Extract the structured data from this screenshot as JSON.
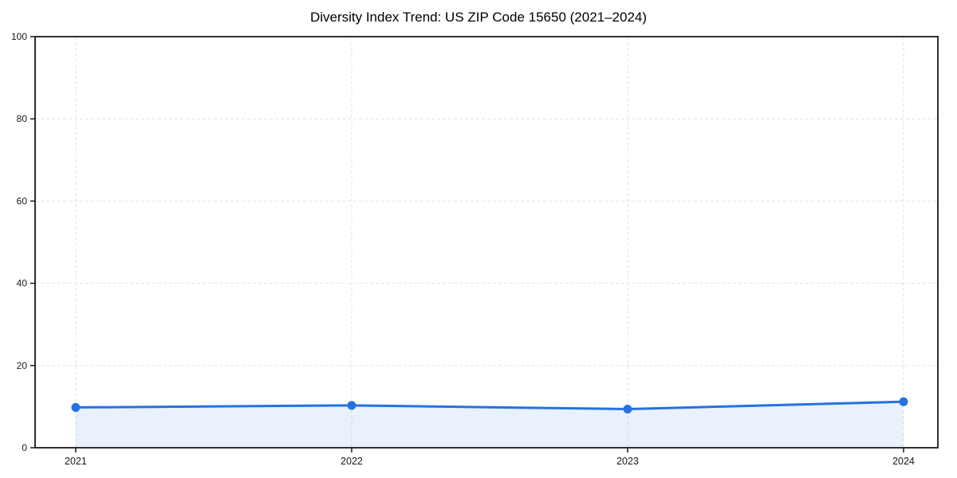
{
  "chart_data": {
    "type": "line",
    "title": "Diversity Index Trend: US ZIP Code 15650 (2021–2024)",
    "xlabel": "",
    "ylabel": "",
    "categories": [
      "2021",
      "2022",
      "2023",
      "2024"
    ],
    "series": [
      {
        "name": "Diversity Index",
        "values": [
          9.8,
          10.3,
          9.4,
          11.2
        ]
      }
    ],
    "ylim": [
      0,
      100
    ],
    "yticks": [
      0,
      20,
      40,
      60,
      80,
      100
    ],
    "grid": true,
    "grid_style": "dashed",
    "legend_position": "none",
    "colors": {
      "line": "#2372e2",
      "marker": "#2372e2",
      "area_fill": "rgba(35,114,226,0.10)",
      "grid": "#e2e2e2",
      "spine": "#1a1a1a",
      "tick_label": "#1a1a1a",
      "title": "#000000",
      "background": "#ffffff"
    }
  }
}
